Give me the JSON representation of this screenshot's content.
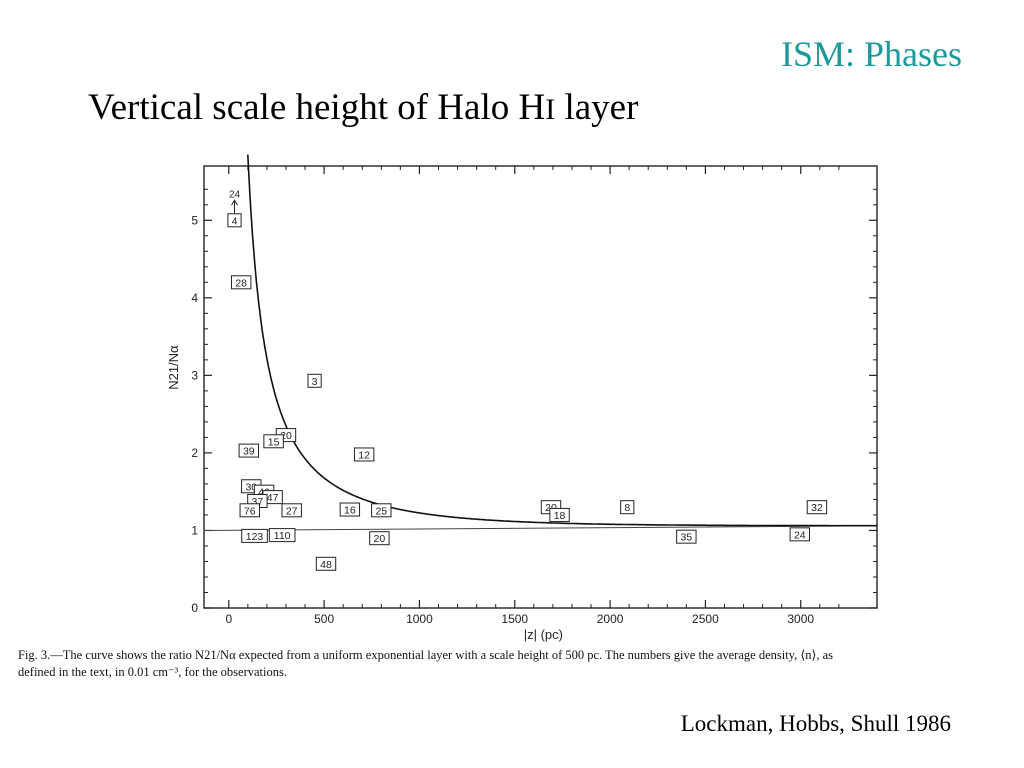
{
  "slide": {
    "topic": "ISM: Phases",
    "title_main": "Vertical scale height of Halo H",
    "title_small": "I",
    "title_end": " layer",
    "caption_line1": "Fig. 3.—The curve shows the ratio N21/Nα expected from a uniform exponential layer with a scale height of 500 pc. The numbers give the average density, ⟨n⟩, as",
    "caption_line2": "defined in the text, in 0.01 cm⁻³, for the observations.",
    "credit": "Lockman, Hobbs, Shull 1986"
  },
  "chart_data": {
    "type": "scatter",
    "title": "",
    "xlabel": "|z| (pc)",
    "ylabel": "N21/Nα",
    "xlim": [
      -130,
      3400
    ],
    "ylim": [
      0,
      5.7
    ],
    "xticks": [
      0,
      500,
      1000,
      1500,
      2000,
      2500,
      3000
    ],
    "yticks": [
      0,
      1,
      2,
      3,
      4,
      5
    ],
    "grid": false,
    "point_style": "boxed density label",
    "points": [
      {
        "x": 30,
        "y": 5.0,
        "label": "4"
      },
      {
        "x": 65,
        "y": 4.2,
        "label": "28"
      },
      {
        "x": 450,
        "y": 2.93,
        "label": "3"
      },
      {
        "x": 300,
        "y": 2.23,
        "label": "20"
      },
      {
        "x": 235,
        "y": 2.15,
        "label": "15"
      },
      {
        "x": 105,
        "y": 2.03,
        "label": "39"
      },
      {
        "x": 710,
        "y": 1.98,
        "label": "12"
      },
      {
        "x": 118,
        "y": 1.57,
        "label": "30"
      },
      {
        "x": 185,
        "y": 1.5,
        "label": "46"
      },
      {
        "x": 230,
        "y": 1.43,
        "label": "47"
      },
      {
        "x": 150,
        "y": 1.38,
        "label": "37"
      },
      {
        "x": 110,
        "y": 1.26,
        "label": "76"
      },
      {
        "x": 330,
        "y": 1.26,
        "label": "27"
      },
      {
        "x": 635,
        "y": 1.27,
        "label": "16"
      },
      {
        "x": 800,
        "y": 1.26,
        "label": "25"
      },
      {
        "x": 1690,
        "y": 1.3,
        "label": "20"
      },
      {
        "x": 1735,
        "y": 1.2,
        "label": "18"
      },
      {
        "x": 2090,
        "y": 1.3,
        "label": "8"
      },
      {
        "x": 3085,
        "y": 1.3,
        "label": "32"
      },
      {
        "x": 135,
        "y": 0.93,
        "label": "123"
      },
      {
        "x": 280,
        "y": 0.94,
        "label": "110"
      },
      {
        "x": 790,
        "y": 0.9,
        "label": "20"
      },
      {
        "x": 2400,
        "y": 0.92,
        "label": "35"
      },
      {
        "x": 2995,
        "y": 0.95,
        "label": "24"
      },
      {
        "x": 510,
        "y": 0.57,
        "label": "48"
      }
    ],
    "upper_limit_marker": {
      "x": 30,
      "label": "24"
    },
    "model_curve": {
      "name": "",
      "asymptote": 1.06,
      "scale_height": 500,
      "formula": "1.06 / (1 - exp(-|z|/500))"
    },
    "reference_line": {
      "y_start": 1.0,
      "y_end": 1.06
    }
  }
}
